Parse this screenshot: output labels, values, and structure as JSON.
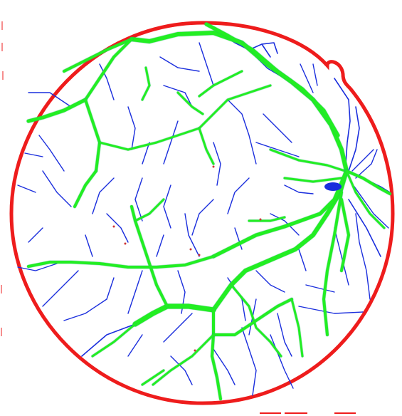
{
  "image": {
    "kind": "retinal fundus vessel segmentation map",
    "background_color": "#ffffff"
  },
  "colors": {
    "fov_boundary": "#ee1c1c",
    "thick_vessel": "#22ee22",
    "thin_vessel": "#1a2edd",
    "vessel_transition": "#1fa37a",
    "optic_disc": "#1a2edd",
    "error_pixels": "#cc3333"
  },
  "legend": []
}
